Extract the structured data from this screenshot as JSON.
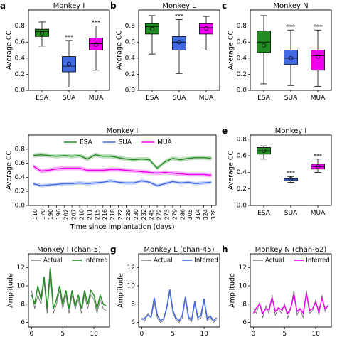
{
  "colors": {
    "esa": "#228b22",
    "sua": "#4169e1",
    "mua": "#ee00ee",
    "actual": "#808080"
  },
  "chart_data": [
    {
      "id": "a",
      "panel_label": "a",
      "type": "box",
      "title": "Monkey I",
      "ylabel": "Average CC",
      "ylim": [
        0,
        1
      ],
      "yticks": [
        0.0,
        0.2,
        0.4,
        0.6,
        0.8
      ],
      "categories": [
        "ESA",
        "SUA",
        "MUA"
      ],
      "boxes": [
        {
          "name": "ESA",
          "color_key": "esa",
          "min": 0.55,
          "q1": 0.67,
          "median": 0.73,
          "q3": 0.76,
          "max": 0.85,
          "mean": 0.71,
          "sig": ""
        },
        {
          "name": "SUA",
          "color_key": "sua",
          "min": 0.04,
          "q1": 0.23,
          "median": 0.3,
          "q3": 0.42,
          "max": 0.62,
          "mean": 0.33,
          "sig": "***"
        },
        {
          "name": "MUA",
          "color_key": "mua",
          "min": 0.25,
          "q1": 0.5,
          "median": 0.58,
          "q3": 0.65,
          "max": 0.8,
          "mean": 0.57,
          "sig": "***"
        }
      ]
    },
    {
      "id": "b",
      "panel_label": "b",
      "type": "box",
      "title": "Monkey L",
      "ylabel": "Average CC",
      "ylim": [
        0,
        1
      ],
      "yticks": [
        0.0,
        0.2,
        0.4,
        0.6,
        0.8
      ],
      "categories": [
        "ESA",
        "SUA",
        "MUA"
      ],
      "boxes": [
        {
          "name": "ESA",
          "color_key": "esa",
          "min": 0.45,
          "q1": 0.7,
          "median": 0.79,
          "q3": 0.83,
          "max": 0.93,
          "mean": 0.76,
          "sig": ""
        },
        {
          "name": "SUA",
          "color_key": "sua",
          "min": 0.21,
          "q1": 0.5,
          "median": 0.6,
          "q3": 0.67,
          "max": 0.88,
          "mean": 0.6,
          "sig": "***"
        },
        {
          "name": "MUA",
          "color_key": "mua",
          "min": 0.5,
          "q1": 0.7,
          "median": 0.78,
          "q3": 0.83,
          "max": 0.92,
          "mean": 0.77,
          "sig": ""
        }
      ]
    },
    {
      "id": "c",
      "panel_label": "c",
      "type": "box",
      "title": "Monkey N",
      "ylabel": "Average CC",
      "ylim": [
        0,
        1
      ],
      "yticks": [
        0.0,
        0.2,
        0.4,
        0.6,
        0.8
      ],
      "categories": [
        "ESA",
        "SUA",
        "MUA"
      ],
      "boxes": [
        {
          "name": "ESA",
          "color_key": "esa",
          "min": 0.08,
          "q1": 0.47,
          "median": 0.6,
          "q3": 0.74,
          "max": 0.93,
          "mean": 0.56,
          "sig": ""
        },
        {
          "name": "SUA",
          "color_key": "sua",
          "min": 0.06,
          "q1": 0.32,
          "median": 0.4,
          "q3": 0.5,
          "max": 0.75,
          "mean": 0.4,
          "sig": "***"
        },
        {
          "name": "MUA",
          "color_key": "mua",
          "min": 0.05,
          "q1": 0.25,
          "median": 0.43,
          "q3": 0.5,
          "max": 0.75,
          "mean": 0.42,
          "sig": "***"
        }
      ]
    },
    {
      "id": "d",
      "panel_label": "",
      "type": "line",
      "title": "Monkey I",
      "xlabel": "Time since implantation (days)",
      "ylabel": "Average CC",
      "ylim": [
        0,
        1
      ],
      "yticks": [
        0.0,
        0.2,
        0.4,
        0.6,
        0.8
      ],
      "legend": {
        "position": "top-center",
        "entries": [
          "ESA",
          "SUA",
          "MUA"
        ]
      },
      "x": [
        "110",
        "170",
        "190",
        "196",
        "202",
        "207",
        "210",
        "211",
        "215",
        "216",
        "218",
        "222",
        "229",
        "230",
        "232",
        "245",
        "272",
        "273",
        "279",
        "286",
        "305",
        "314",
        "324",
        "328"
      ],
      "series": [
        {
          "name": "ESA",
          "color_key": "esa",
          "band": 0.03,
          "values": [
            0.71,
            0.72,
            0.71,
            0.7,
            0.71,
            0.7,
            0.71,
            0.66,
            0.72,
            0.7,
            0.7,
            0.68,
            0.66,
            0.65,
            0.66,
            0.65,
            0.53,
            0.62,
            0.67,
            0.65,
            0.67,
            0.68,
            0.68,
            0.67
          ]
        },
        {
          "name": "SUA",
          "color_key": "sua",
          "band": 0.025,
          "values": [
            0.31,
            0.28,
            0.29,
            0.3,
            0.31,
            0.31,
            0.32,
            0.31,
            0.32,
            0.33,
            0.35,
            0.33,
            0.32,
            0.32,
            0.35,
            0.33,
            0.28,
            0.31,
            0.34,
            0.32,
            0.33,
            0.31,
            0.32,
            0.33
          ]
        },
        {
          "name": "MUA",
          "color_key": "mua",
          "band": 0.03,
          "values": [
            0.56,
            0.49,
            0.5,
            0.52,
            0.53,
            0.53,
            0.53,
            0.5,
            0.5,
            0.5,
            0.51,
            0.51,
            0.5,
            0.49,
            0.48,
            0.47,
            0.46,
            0.47,
            0.46,
            0.45,
            0.44,
            0.44,
            0.44,
            0.43
          ]
        }
      ]
    },
    {
      "id": "e",
      "panel_label": "e",
      "type": "box",
      "title": "Monkey I",
      "ylabel": "Average CC",
      "ylim": [
        0,
        0.85
      ],
      "yticks": [
        0.0,
        0.2,
        0.4,
        0.6,
        0.8
      ],
      "categories": [
        "ESA",
        "SUA",
        "MUA"
      ],
      "boxes": [
        {
          "name": "ESA",
          "color_key": "esa",
          "min": 0.56,
          "q1": 0.62,
          "median": 0.66,
          "q3": 0.7,
          "max": 0.72,
          "mean": 0.66,
          "sig": ""
        },
        {
          "name": "SUA",
          "color_key": "sua",
          "min": 0.28,
          "q1": 0.3,
          "median": 0.32,
          "q3": 0.33,
          "max": 0.35,
          "mean": 0.32,
          "sig": "***"
        },
        {
          "name": "MUA",
          "color_key": "mua",
          "min": 0.4,
          "q1": 0.44,
          "median": 0.47,
          "q3": 0.5,
          "max": 0.56,
          "mean": 0.47,
          "sig": "***"
        }
      ]
    },
    {
      "id": "f",
      "panel_label": "",
      "type": "line",
      "title": "Monkey I (chan-5)",
      "xlabel": "Time (s)",
      "ylabel": "Amplitude",
      "xlim": [
        -0.5,
        12.5
      ],
      "xticks": [
        0,
        5,
        10
      ],
      "ylim": [
        5.5,
        13.5
      ],
      "yticks": [
        6,
        8,
        10,
        12
      ],
      "legend": {
        "position": "top-right",
        "entries": [
          "Actual",
          "Inferred"
        ]
      },
      "series": [
        {
          "name": "Actual",
          "color_key": "actual",
          "x": [
            0,
            0.5,
            1,
            1.5,
            2,
            2.5,
            3,
            3.5,
            4,
            4.5,
            5,
            5.5,
            6,
            6.5,
            7,
            7.5,
            8,
            8.5,
            9,
            9.5,
            10,
            10.5,
            11,
            11.5,
            12
          ],
          "y": [
            9.5,
            7.5,
            9.0,
            8.0,
            10.5,
            7.0,
            11.3,
            7.0,
            8.0,
            9.5,
            7.5,
            9.0,
            7.0,
            9.0,
            7.5,
            8.5,
            7.0,
            9.0,
            7.5,
            9.0,
            8.5,
            7.0,
            8.5,
            7.5,
            7.3
          ]
        },
        {
          "name": "Inferred",
          "color_key": "esa",
          "x": [
            0,
            0.5,
            1,
            1.5,
            2,
            2.5,
            3,
            3.5,
            4,
            4.5,
            5,
            5.5,
            6,
            6.5,
            7,
            7.5,
            8,
            8.5,
            9,
            9.5,
            10,
            10.5,
            11,
            11.5,
            12
          ],
          "y": [
            9.0,
            8.0,
            10.0,
            8.5,
            11.0,
            7.5,
            12.0,
            7.5,
            8.5,
            10.0,
            8.0,
            9.5,
            7.5,
            9.5,
            7.8,
            9.0,
            7.5,
            9.5,
            8.0,
            9.5,
            9.0,
            7.5,
            9.0,
            8.0,
            7.8
          ]
        }
      ]
    },
    {
      "id": "g",
      "panel_label": "g",
      "type": "line",
      "title": "Monkey L (chan-45)",
      "xlabel": "Time (s)",
      "ylabel": "Amplitude",
      "xlim": [
        -0.5,
        12.5
      ],
      "xticks": [
        0,
        5,
        10
      ],
      "ylim": [
        5.5,
        13.5
      ],
      "yticks": [
        6,
        8,
        10,
        12
      ],
      "legend": {
        "position": "top-right",
        "entries": [
          "Actual",
          "Inferred"
        ]
      },
      "series": [
        {
          "name": "Actual",
          "color_key": "actual",
          "x": [
            0,
            0.5,
            1,
            1.5,
            2,
            2.5,
            3,
            3.5,
            4,
            4.5,
            5,
            5.5,
            6,
            6.5,
            7,
            7.5,
            8,
            8.5,
            9,
            9.5,
            10,
            10.5,
            11,
            11.5,
            12
          ],
          "y": [
            6.5,
            6.2,
            7.0,
            6.5,
            8.2,
            6.5,
            6.0,
            6.2,
            7.5,
            9.3,
            7.0,
            6.3,
            6.0,
            6.5,
            8.5,
            6.4,
            6.1,
            8.0,
            6.3,
            6.5,
            8.3,
            6.2,
            6.5,
            6.0,
            6.3
          ]
        },
        {
          "name": "Inferred",
          "color_key": "sua",
          "x": [
            0,
            0.5,
            1,
            1.5,
            2,
            2.5,
            3,
            3.5,
            4,
            4.5,
            5,
            5.5,
            6,
            6.5,
            7,
            7.5,
            8,
            8.5,
            9,
            9.5,
            10,
            10.5,
            11,
            11.5,
            12
          ],
          "y": [
            6.3,
            6.5,
            6.8,
            6.6,
            8.7,
            6.8,
            6.2,
            6.4,
            7.6,
            9.6,
            7.3,
            6.5,
            6.2,
            6.8,
            8.8,
            6.6,
            6.3,
            8.3,
            6.5,
            6.8,
            8.6,
            6.4,
            6.7,
            6.2,
            6.5
          ]
        }
      ]
    },
    {
      "id": "h",
      "panel_label": "h",
      "type": "line",
      "title": "Monkey N (chan-62)",
      "xlabel": "Time (s)",
      "ylabel": "Amplitude",
      "xlim": [
        -0.5,
        12.5
      ],
      "xticks": [
        0,
        5,
        10
      ],
      "ylim": [
        5.5,
        13.5
      ],
      "yticks": [
        6,
        8,
        10,
        12,
        14
      ],
      "legend": {
        "position": "top-right",
        "entries": [
          "Actual",
          "Inferred"
        ]
      },
      "series": [
        {
          "name": "Actual",
          "color_key": "actual",
          "x": [
            0,
            0.5,
            1,
            1.5,
            2,
            2.5,
            3,
            3.5,
            4,
            4.5,
            5,
            5.5,
            6,
            6.5,
            7,
            7.5,
            8,
            8.5,
            9,
            9.5,
            10,
            10.5,
            11,
            11.5,
            12
          ],
          "y": [
            7.5,
            7.0,
            8.2,
            6.5,
            7.8,
            7.0,
            9.0,
            6.8,
            7.5,
            7.0,
            8.0,
            6.5,
            7.5,
            9.5,
            6.8,
            7.5,
            6.5,
            9.5,
            7.0,
            7.3,
            8.5,
            6.8,
            9.0,
            7.2,
            8.0
          ]
        },
        {
          "name": "Inferred",
          "color_key": "mua",
          "x": [
            0,
            0.5,
            1,
            1.5,
            2,
            2.5,
            3,
            3.5,
            4,
            4.5,
            5,
            5.5,
            6,
            6.5,
            7,
            7.5,
            8,
            8.5,
            9,
            9.5,
            10,
            10.5,
            11,
            11.5,
            12
          ],
          "y": [
            7.0,
            7.6,
            8.0,
            7.0,
            7.5,
            7.4,
            8.7,
            7.2,
            7.6,
            7.4,
            7.8,
            7.0,
            7.6,
            9.0,
            7.2,
            7.5,
            7.0,
            9.2,
            7.3,
            7.5,
            8.2,
            7.2,
            8.6,
            7.5,
            7.8
          ]
        }
      ]
    }
  ]
}
